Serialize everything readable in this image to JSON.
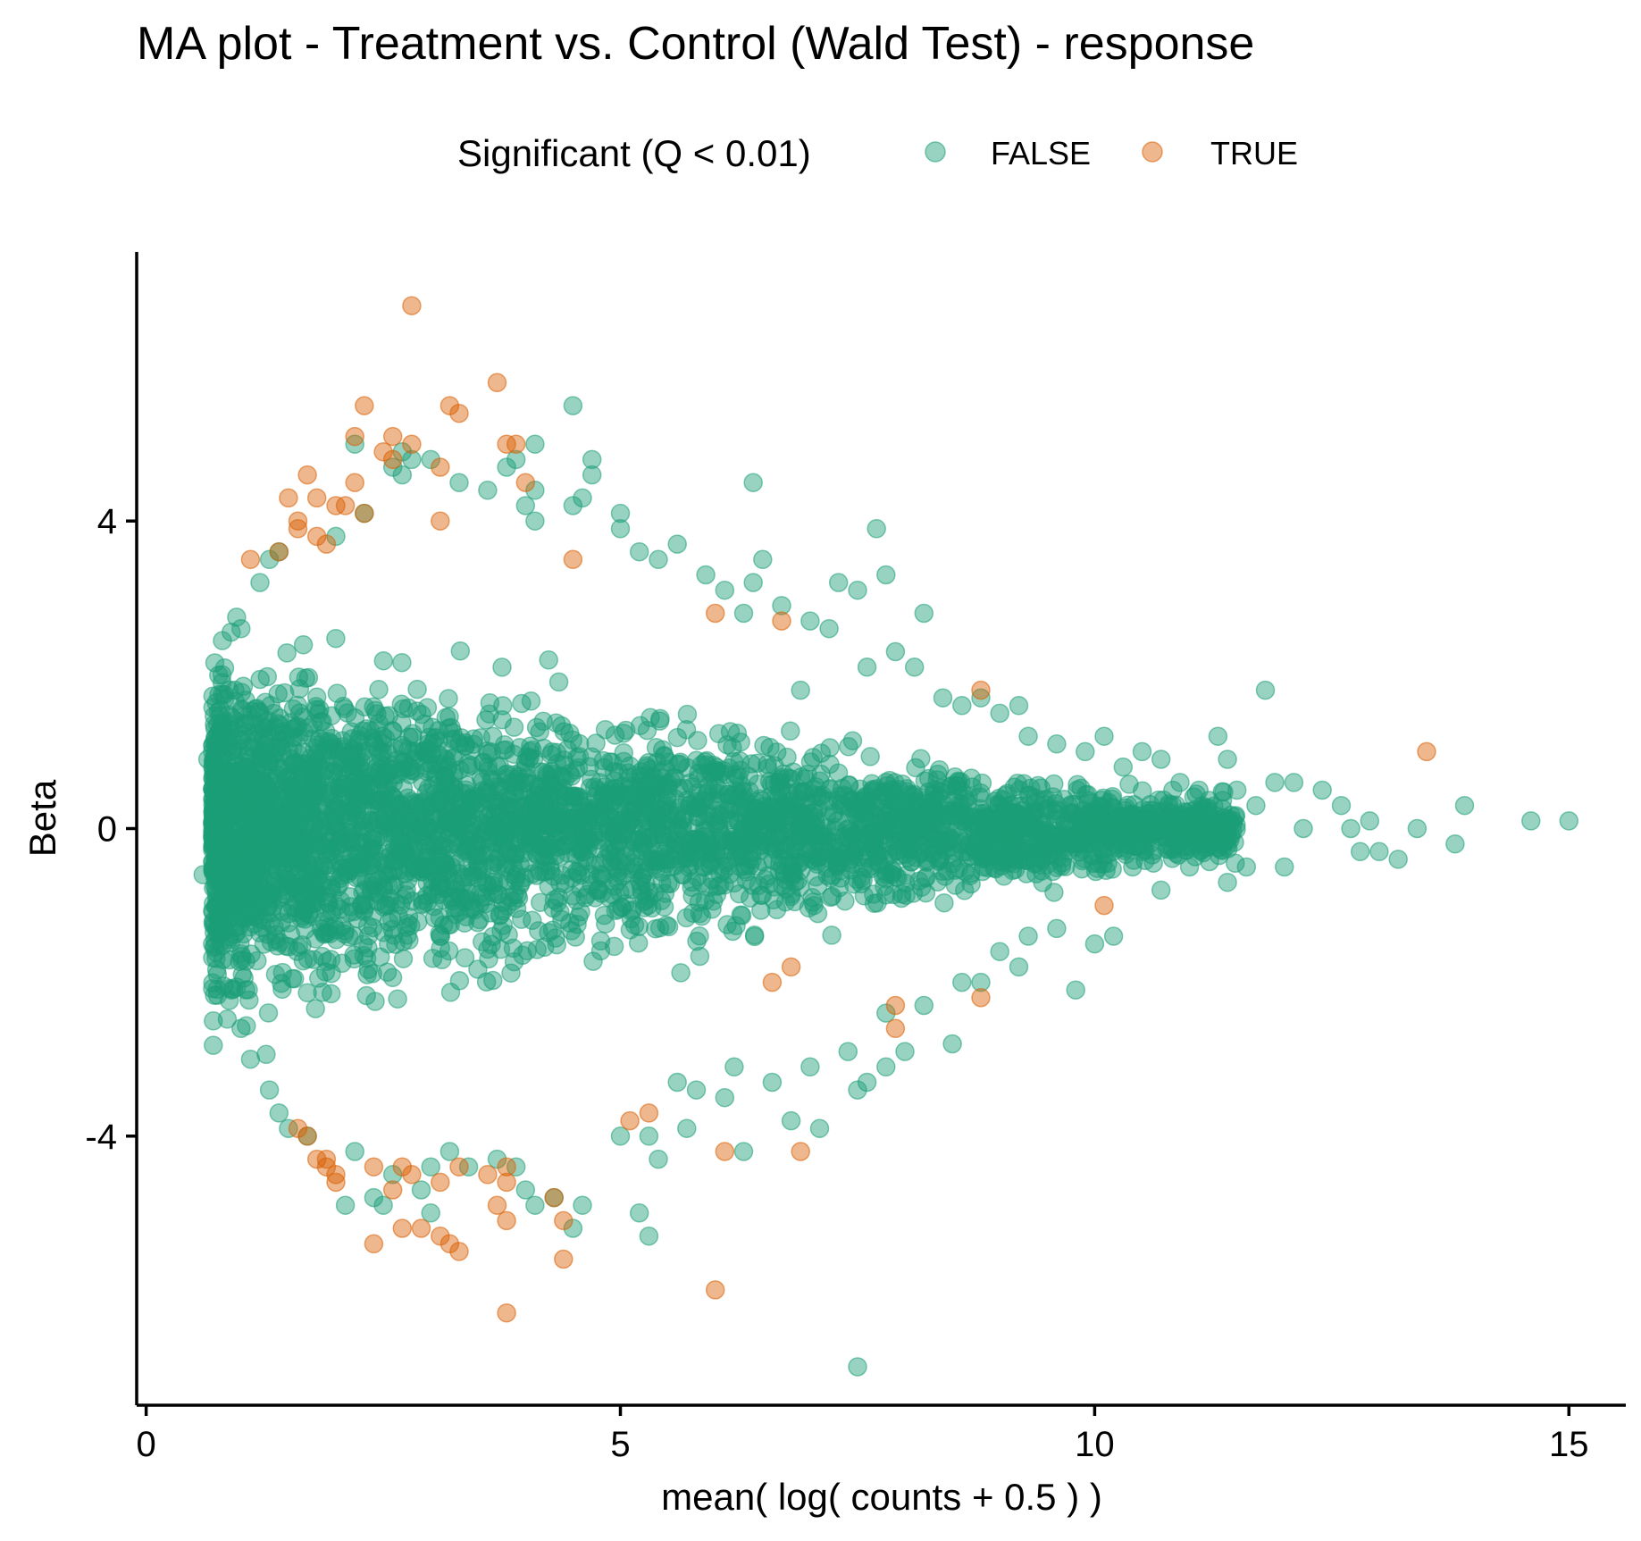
{
  "chart_data": {
    "type": "scatter",
    "title": "MA plot - Treatment vs. Control (Wald Test) - response",
    "xlabel": "mean( log( counts + 0.5 ) )",
    "ylabel": "Beta",
    "xlim": [
      -0.1,
      15.6
    ],
    "ylim": [
      -7.5,
      7.5
    ],
    "x_ticks": [
      0,
      5,
      10,
      15
    ],
    "x_tick_labels": [
      "0",
      "5",
      "10",
      "15"
    ],
    "y_ticks": [
      -4,
      0,
      4
    ],
    "y_tick_labels": [
      "-4",
      "0",
      "4"
    ],
    "grid": false,
    "legend": {
      "title": "Significant (Q < 0.01)",
      "placement": "top",
      "entries": [
        "FALSE",
        "TRUE"
      ]
    },
    "colors": {
      "FALSE": "#1b9e77",
      "TRUE": "#d95f02"
    },
    "point_alpha": 0.45,
    "series": [
      {
        "name": "FALSE",
        "points": [
          [
            0.6,
            -0.6
          ],
          [
            0.65,
            0.9
          ],
          [
            0.7,
            -1.5
          ],
          [
            0.7,
            1.0
          ],
          [
            0.75,
            -1.9
          ],
          [
            0.8,
            1.9
          ],
          [
            0.8,
            2.0
          ],
          [
            0.9,
            -2.1
          ],
          [
            1.0,
            -2.6
          ],
          [
            1.0,
            2.6
          ],
          [
            1.2,
            3.2
          ],
          [
            1.3,
            3.5
          ],
          [
            1.4,
            3.6
          ],
          [
            1.1,
            -3.0
          ],
          [
            1.3,
            -3.4
          ],
          [
            1.4,
            -3.7
          ],
          [
            1.5,
            -3.9
          ],
          [
            1.7,
            -4.0
          ],
          [
            2.0,
            3.8
          ],
          [
            2.3,
            4.1
          ],
          [
            2.2,
            5.0
          ],
          [
            2.6,
            4.7
          ],
          [
            2.7,
            4.9
          ],
          [
            2.8,
            4.8
          ],
          [
            2.7,
            4.6
          ],
          [
            3.0,
            4.8
          ],
          [
            3.3,
            4.5
          ],
          [
            3.6,
            4.4
          ],
          [
            3.8,
            4.7
          ],
          [
            3.9,
            4.8
          ],
          [
            4.1,
            4.4
          ],
          [
            4.0,
            4.2
          ],
          [
            4.1,
            5.0
          ],
          [
            4.1,
            4.0
          ],
          [
            4.5,
            5.5
          ],
          [
            4.5,
            4.2
          ],
          [
            4.7,
            4.8
          ],
          [
            4.7,
            4.6
          ],
          [
            4.6,
            4.3
          ],
          [
            5.0,
            4.1
          ],
          [
            5.0,
            3.9
          ],
          [
            5.2,
            3.6
          ],
          [
            5.4,
            3.5
          ],
          [
            5.6,
            3.7
          ],
          [
            5.9,
            3.3
          ],
          [
            6.1,
            3.1
          ],
          [
            6.3,
            2.8
          ],
          [
            6.5,
            3.5
          ],
          [
            6.4,
            3.2
          ],
          [
            6.7,
            2.9
          ],
          [
            7.0,
            2.7
          ],
          [
            7.2,
            2.6
          ],
          [
            7.3,
            3.2
          ],
          [
            7.5,
            3.1
          ],
          [
            7.7,
            3.9
          ],
          [
            7.8,
            3.3
          ],
          [
            7.9,
            2.3
          ],
          [
            8.1,
            2.1
          ],
          [
            8.2,
            2.8
          ],
          [
            8.4,
            1.7
          ],
          [
            8.6,
            1.6
          ],
          [
            8.8,
            1.7
          ],
          [
            9.0,
            1.5
          ],
          [
            9.2,
            1.6
          ],
          [
            9.3,
            1.2
          ],
          [
            9.6,
            1.1
          ],
          [
            9.9,
            1.0
          ],
          [
            10.1,
            1.2
          ],
          [
            10.3,
            0.8
          ],
          [
            10.5,
            1.0
          ],
          [
            10.7,
            0.9
          ],
          [
            10.9,
            0.6
          ],
          [
            11.1,
            0.5
          ],
          [
            11.3,
            1.2
          ],
          [
            11.4,
            0.9
          ],
          [
            11.5,
            0.5
          ],
          [
            11.7,
            0.3
          ],
          [
            11.8,
            1.8
          ],
          [
            11.9,
            0.6
          ],
          [
            12.1,
            0.6
          ],
          [
            12.2,
            0.0
          ],
          [
            12.4,
            0.5
          ],
          [
            12.6,
            0.3
          ],
          [
            12.7,
            0.0
          ],
          [
            12.9,
            0.1
          ],
          [
            13.0,
            -0.3
          ],
          [
            13.2,
            -0.4
          ],
          [
            13.4,
            0.0
          ],
          [
            13.9,
            0.3
          ],
          [
            14.6,
            0.1
          ],
          [
            15.0,
            0.1
          ],
          [
            13.8,
            -0.2
          ],
          [
            12.8,
            -0.3
          ],
          [
            12.0,
            -0.5
          ],
          [
            11.6,
            -0.5
          ],
          [
            11.4,
            -0.7
          ],
          [
            11.0,
            -0.5
          ],
          [
            10.7,
            -0.8
          ],
          [
            10.4,
            -0.5
          ],
          [
            10.2,
            -1.4
          ],
          [
            10.0,
            -1.5
          ],
          [
            9.8,
            -2.1
          ],
          [
            9.6,
            -1.3
          ],
          [
            9.3,
            -1.4
          ],
          [
            9.0,
            -1.6
          ],
          [
            9.2,
            -1.8
          ],
          [
            8.8,
            -2.0
          ],
          [
            8.6,
            -2.0
          ],
          [
            8.5,
            -2.8
          ],
          [
            8.2,
            -2.3
          ],
          [
            8.0,
            -2.9
          ],
          [
            7.8,
            -2.4
          ],
          [
            7.8,
            -3.1
          ],
          [
            7.6,
            -3.3
          ],
          [
            7.5,
            -3.4
          ],
          [
            7.4,
            -2.9
          ],
          [
            7.0,
            -3.1
          ],
          [
            7.1,
            -3.9
          ],
          [
            6.8,
            -3.8
          ],
          [
            6.6,
            -3.3
          ],
          [
            6.3,
            -4.2
          ],
          [
            6.2,
            -3.1
          ],
          [
            6.1,
            -3.5
          ],
          [
            5.8,
            -3.4
          ],
          [
            5.6,
            -3.3
          ],
          [
            5.7,
            -3.9
          ],
          [
            5.4,
            -4.3
          ],
          [
            5.3,
            -4.0
          ],
          [
            5.0,
            -4.0
          ],
          [
            5.2,
            -5.0
          ],
          [
            5.3,
            -5.3
          ],
          [
            4.6,
            -4.9
          ],
          [
            4.5,
            -5.2
          ],
          [
            4.3,
            -4.8
          ],
          [
            4.0,
            -4.7
          ],
          [
            4.1,
            -4.9
          ],
          [
            3.7,
            -4.3
          ],
          [
            3.9,
            -4.4
          ],
          [
            3.4,
            -4.4
          ],
          [
            3.2,
            -4.2
          ],
          [
            3.0,
            -4.4
          ],
          [
            3.0,
            -5.0
          ],
          [
            2.9,
            -4.7
          ],
          [
            2.6,
            -4.5
          ],
          [
            2.5,
            -4.9
          ],
          [
            2.4,
            -4.8
          ],
          [
            2.2,
            -4.2
          ],
          [
            2.1,
            -4.9
          ],
          [
            7.5,
            -7.0
          ],
          [
            6.4,
            4.5
          ],
          [
            7.6,
            2.1
          ],
          [
            6.9,
            1.8
          ]
        ]
      },
      {
        "name": "TRUE",
        "points": [
          [
            2.8,
            6.8
          ],
          [
            3.7,
            5.8
          ],
          [
            2.3,
            5.5
          ],
          [
            3.2,
            5.5
          ],
          [
            3.3,
            5.4
          ],
          [
            2.2,
            5.1
          ],
          [
            2.6,
            5.1
          ],
          [
            2.8,
            5.0
          ],
          [
            3.8,
            5.0
          ],
          [
            3.9,
            5.0
          ],
          [
            2.5,
            4.9
          ],
          [
            2.6,
            4.8
          ],
          [
            3.1,
            4.7
          ],
          [
            1.7,
            4.6
          ],
          [
            2.2,
            4.5
          ],
          [
            4.0,
            4.5
          ],
          [
            1.5,
            4.3
          ],
          [
            1.8,
            4.3
          ],
          [
            2.0,
            4.2
          ],
          [
            2.1,
            4.2
          ],
          [
            2.3,
            4.1
          ],
          [
            1.6,
            4.0
          ],
          [
            3.1,
            4.0
          ],
          [
            1.6,
            3.9
          ],
          [
            1.8,
            3.8
          ],
          [
            1.9,
            3.7
          ],
          [
            4.5,
            3.5
          ],
          [
            1.4,
            3.6
          ],
          [
            1.1,
            3.5
          ],
          [
            6.7,
            2.7
          ],
          [
            6.0,
            2.8
          ],
          [
            8.8,
            1.8
          ],
          [
            13.5,
            1.0
          ],
          [
            10.1,
            -1.0
          ],
          [
            8.8,
            -2.2
          ],
          [
            7.9,
            -2.3
          ],
          [
            7.9,
            -2.6
          ],
          [
            6.6,
            -2.0
          ],
          [
            6.8,
            -1.8
          ],
          [
            5.3,
            -3.7
          ],
          [
            6.1,
            -4.2
          ],
          [
            6.9,
            -4.2
          ],
          [
            5.1,
            -3.8
          ],
          [
            1.6,
            -3.9
          ],
          [
            1.7,
            -4.0
          ],
          [
            1.8,
            -4.3
          ],
          [
            1.9,
            -4.3
          ],
          [
            1.9,
            -4.4
          ],
          [
            2.0,
            -4.5
          ],
          [
            2.0,
            -4.6
          ],
          [
            2.4,
            -4.4
          ],
          [
            2.7,
            -4.4
          ],
          [
            2.6,
            -4.7
          ],
          [
            2.8,
            -4.5
          ],
          [
            3.1,
            -4.6
          ],
          [
            3.3,
            -4.4
          ],
          [
            3.6,
            -4.5
          ],
          [
            3.8,
            -4.4
          ],
          [
            3.8,
            -4.6
          ],
          [
            3.7,
            -4.9
          ],
          [
            4.3,
            -4.8
          ],
          [
            4.4,
            -5.1
          ],
          [
            2.4,
            -5.4
          ],
          [
            2.7,
            -5.2
          ],
          [
            2.9,
            -5.2
          ],
          [
            3.1,
            -5.3
          ],
          [
            3.2,
            -5.4
          ],
          [
            3.3,
            -5.5
          ],
          [
            3.8,
            -5.1
          ],
          [
            4.4,
            -5.6
          ],
          [
            3.8,
            -6.3
          ],
          [
            6.0,
            -6.0
          ]
        ]
      }
    ]
  }
}
